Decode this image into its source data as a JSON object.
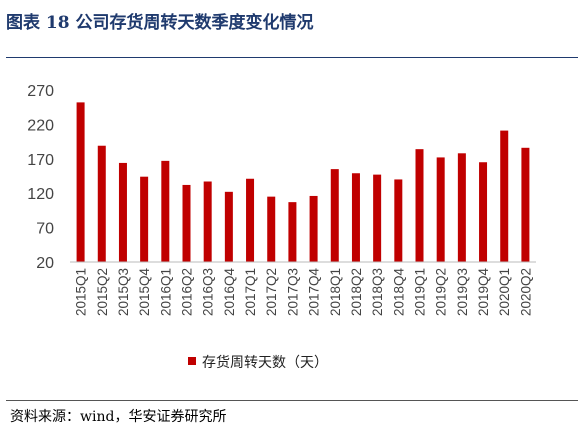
{
  "title": "图表 18 公司存货周转天数季度变化情况",
  "source": "资料来源：wind，华安证券研究所",
  "chart_data": {
    "type": "bar",
    "categories": [
      "2015Q1",
      "2015Q2",
      "2015Q3",
      "2015Q4",
      "2016Q1",
      "2016Q2",
      "2016Q3",
      "2016Q4",
      "2017Q1",
      "2017Q2",
      "2017Q3",
      "2017Q4",
      "2018Q1",
      "2018Q2",
      "2018Q3",
      "2018Q4",
      "2019Q1",
      "2019Q2",
      "2019Q3",
      "2019Q4",
      "2020Q1",
      "2020Q2"
    ],
    "series": [
      {
        "name": "存货周转天数（天）",
        "values": [
          252,
          189,
          164,
          144,
          167,
          132,
          137,
          122,
          141,
          115,
          107,
          116,
          155,
          149,
          147,
          140,
          184,
          172,
          178,
          165,
          211,
          186
        ]
      }
    ],
    "yticks": [
      20,
      70,
      120,
      170,
      220,
      270
    ],
    "ylim": [
      20,
      270
    ],
    "color": "#c00000",
    "legend_position": "bottom",
    "grid": false
  }
}
